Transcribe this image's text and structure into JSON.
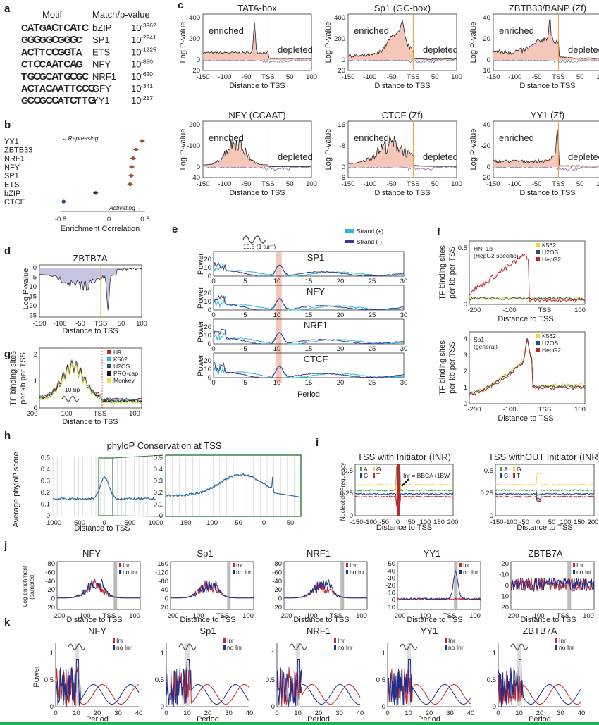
{
  "a": {
    "label": "a",
    "header_motif": "Motif",
    "header_match": "Match/p-value",
    "rows": [
      {
        "logo": "CATGACTCATC",
        "tf": "bZIP",
        "p": "10",
        "exp": "-3962"
      },
      {
        "logo": "GGGGGCGGGC",
        "tf": "SP1",
        "p": "10",
        "exp": "-2241"
      },
      {
        "logo": "ACTTCCGGTA",
        "tf": "ETS",
        "p": "10",
        "exp": "-1225"
      },
      {
        "logo": "CTCCAATCAG",
        "tf": "NFY",
        "p": "10",
        "exp": "-850"
      },
      {
        "logo": "TGCGCATGCGC",
        "tf": "NRF1",
        "p": "10",
        "exp": "-620"
      },
      {
        "logo": "ACTACAATTCCC",
        "tf": "GFY",
        "p": "10",
        "exp": "-341"
      },
      {
        "logo": "GCCGCCATCTTG",
        "tf": "YY1",
        "p": "10",
        "exp": "-217"
      }
    ],
    "colors": {
      "A": "#2ca02c",
      "C": "#1f4e9c",
      "G": "#f0a30a",
      "T": "#d62728"
    }
  },
  "b": {
    "label": "b",
    "repressing": "←Repressing",
    "activating": "Activating→",
    "xlabel": "Enrichment Correlation",
    "ticks": [
      "-0.8",
      "0",
      "0.6"
    ],
    "chart_data": {
      "type": "scatter",
      "categories": [
        "YY1",
        "ZBTB33",
        "NRF1",
        "NFY",
        "SP1",
        "ETS",
        "bZIP",
        "CTCF"
      ],
      "values": [
        0.55,
        0.45,
        0.4,
        0.38,
        0.37,
        0.35,
        -0.22,
        -0.75
      ],
      "xlim": [
        -0.8,
        0.6
      ]
    }
  },
  "c": {
    "label": "c",
    "xlabel": "Distance to TSS",
    "ylabel": "Log P-value",
    "enriched": "enriched",
    "depleted": "depleted",
    "xticks": [
      "-150",
      "-100",
      "-50",
      "TSS",
      "50",
      "100"
    ],
    "panels": [
      {
        "title": "TATA-box",
        "yticks": [
          "-400",
          "-200",
          "0",
          "20"
        ],
        "shape": "tata"
      },
      {
        "title": "Sp1 (GC-box)",
        "yticks": [
          "-400",
          "-200",
          "0",
          "20"
        ],
        "shape": "sp1"
      },
      {
        "title": "ZBTB33/BANP (Zf)",
        "yticks": [
          "-40",
          "-20",
          "0",
          "10"
        ],
        "shape": "zbtb33"
      },
      {
        "title": "NFY (CCAAT)",
        "yticks": [
          "-200",
          "-100",
          "0",
          "40"
        ],
        "shape": "nfy"
      },
      {
        "title": "CTCF (Zf)",
        "yticks": [
          "-16",
          "-8",
          "0",
          "6"
        ],
        "shape": "ctcf"
      },
      {
        "title": "YY1 (Zf)",
        "yticks": [
          "-40",
          "-20",
          "0",
          "20"
        ],
        "shape": "yy1"
      }
    ]
  },
  "d": {
    "label": "d",
    "title": "ZBTB7A",
    "ylabel": "Log P-value",
    "xlabel": "Distance to TSS",
    "yticks": [
      "0",
      "5",
      "10",
      "15",
      "20",
      "25"
    ],
    "xticks": [
      "-150",
      "-100",
      "-50",
      "TSS",
      "50",
      "100"
    ]
  },
  "e": {
    "label": "e",
    "turn": "10.5 (1 turn)",
    "legend": [
      "Strand (+)",
      "Strand (-)"
    ],
    "ylabel": "Power",
    "xlabel": "Period",
    "yticks": [
      "0",
      "10",
      "20"
    ],
    "xticks": [
      "0",
      "5",
      "10",
      "15",
      "20",
      "25",
      "30"
    ],
    "panels": [
      "SP1",
      "NFY",
      "NRF1",
      "CTCF"
    ]
  },
  "f": {
    "label": "f",
    "ylabel1": "TF binding sites",
    "ylabel2": "per kb per TSS",
    "xlabel": "Distance to TSS",
    "legend": [
      "K562",
      "U2OS",
      "HepG2"
    ],
    "top": {
      "name": "HNF1b",
      "sub": "(HepG2 specific)",
      "yticks": [
        "0",
        "0.5"
      ],
      "xticks": [
        "-200",
        "-100",
        "TSS",
        "100"
      ]
    },
    "bottom": {
      "name": "Sp1",
      "sub": "(general)",
      "yticks": [
        "0",
        "1",
        "2",
        "3",
        "4"
      ],
      "xticks": [
        "-200",
        "-100",
        "TSS",
        "100"
      ]
    }
  },
  "g": {
    "label": "g",
    "ylabel1": "TF binding sites",
    "ylabel2": "per kb per TSS",
    "xlabel": "Distance to TSS",
    "bp": "10 bp",
    "legend": [
      "H9",
      "K562",
      "U2OS",
      "PRO-cap",
      "Monkey"
    ],
    "yticks": [
      "0",
      "1",
      "2"
    ],
    "xticks": [
      "-200",
      "-100",
      "TSS",
      "100"
    ]
  },
  "h": {
    "label": "h",
    "title": "phyloP Conservation at TSS",
    "ylabel": "Average phyloP score",
    "xlabel": "Distance to TSS",
    "yticks": [
      "0",
      "0.1",
      "0.2",
      "0.3",
      "0.4",
      "0.5"
    ],
    "xticks1": [
      "-1000",
      "-500",
      "0",
      "500",
      "1000"
    ],
    "xticks2": [
      "-150",
      "-100",
      "-50",
      "0",
      "50"
    ]
  },
  "i": {
    "label": "i",
    "title1": "TSS with Initiator (INR)",
    "title2": "TSS withOUT Initiator (INR)",
    "inr": "Inr = BBCA+1BW",
    "ylabel": "Nucleotide Frequency",
    "xlabel": "Distance to TSS",
    "yticks": [
      "0",
      "0.25",
      "0.5"
    ],
    "xticks": [
      "-150",
      "-100",
      "-50",
      "0",
      "50",
      "100",
      "150",
      "200"
    ],
    "bases": [
      "A",
      "G",
      "C",
      "T"
    ]
  },
  "j": {
    "label": "j",
    "ylabel1": "Log enrichment",
    "ylabel2": "(sampled)",
    "xlabel": "Distance to TSS",
    "legend": [
      "Inr",
      "no Inr"
    ],
    "xticks": [
      "-200",
      "-100",
      "TSS",
      "100"
    ],
    "panels": [
      {
        "title": "NFY",
        "yticks": [
          "-80",
          "-60",
          "-40",
          "-20",
          "0",
          "20"
        ]
      },
      {
        "title": "Sp1",
        "yticks": [
          "-160",
          "-120",
          "-80",
          "-40",
          "0",
          "20"
        ]
      },
      {
        "title": "NRF1",
        "yticks": [
          "-80",
          "-60",
          "-40",
          "-20",
          "0",
          "20"
        ]
      },
      {
        "title": "YY1",
        "yticks": [
          "-50",
          "-40",
          "-30",
          "-20",
          "-10",
          "0",
          "10"
        ]
      },
      {
        "title": "ZBTB7A",
        "yticks": [
          "-20",
          "-10",
          "0",
          "10",
          "20"
        ]
      }
    ]
  },
  "k": {
    "label": "k",
    "ylabel": "Power",
    "xlabel": "Period",
    "legend": [
      "Inr",
      "no Inr"
    ],
    "yticks": [
      "0",
      "0.5",
      "1"
    ],
    "xticks": [
      "0",
      "10",
      "20",
      "30",
      "40"
    ],
    "panels": [
      "NFY",
      "Sp1",
      "NRF1",
      "YY1",
      "ZBTB7A"
    ]
  }
}
